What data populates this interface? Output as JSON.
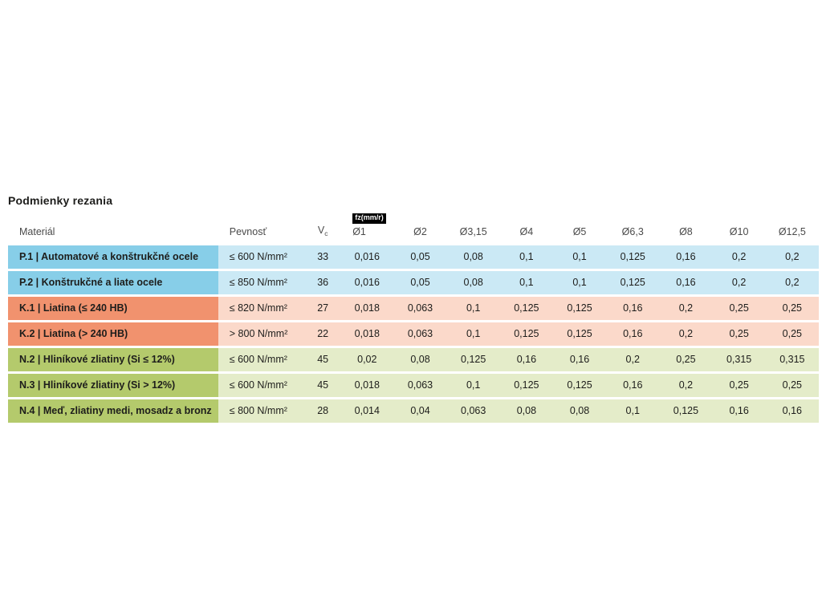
{
  "title": "Podmienky rezania",
  "table": {
    "feed_unit_badge": "fz(mm/r)",
    "headers": {
      "material": "Materiál",
      "strength": "Pevnosť",
      "vc_main": "V",
      "vc_sub": "c",
      "diameters": [
        "Ø1",
        "Ø2",
        "Ø3,15",
        "Ø4",
        "Ø5",
        "Ø6,3",
        "Ø8",
        "Ø10",
        "Ø12,5"
      ]
    },
    "group_colors": {
      "steel": {
        "label_bg": "#87cee8",
        "data_bg": "#cbe9f5"
      },
      "cast_iron": {
        "label_bg": "#f1926e",
        "data_bg": "#fbd9ca"
      },
      "non_ferrous": {
        "label_bg": "#b4ca6c",
        "data_bg": "#e4ecc9"
      }
    },
    "rows": [
      {
        "group": "steel",
        "material": "P.1 | Automatové a konštrukčné ocele",
        "strength": "≤ 600 N/mm²",
        "vc": "33",
        "feeds": [
          "0,016",
          "0,05",
          "0,08",
          "0,1",
          "0,1",
          "0,125",
          "0,16",
          "0,2",
          "0,2"
        ]
      },
      {
        "group": "steel",
        "material": "P.2 | Konštrukčné a liate ocele",
        "strength": "≤ 850 N/mm²",
        "vc": "36",
        "feeds": [
          "0,016",
          "0,05",
          "0,08",
          "0,1",
          "0,1",
          "0,125",
          "0,16",
          "0,2",
          "0,2"
        ]
      },
      {
        "group": "cast_iron",
        "material": "K.1 | Liatina (≤ 240 HB)",
        "strength": "≤ 820 N/mm²",
        "vc": "27",
        "feeds": [
          "0,018",
          "0,063",
          "0,1",
          "0,125",
          "0,125",
          "0,16",
          "0,2",
          "0,25",
          "0,25"
        ]
      },
      {
        "group": "cast_iron",
        "material": "K.2 | Liatina (> 240 HB)",
        "strength": "> 800 N/mm²",
        "vc": "22",
        "feeds": [
          "0,018",
          "0,063",
          "0,1",
          "0,125",
          "0,125",
          "0,16",
          "0,2",
          "0,25",
          "0,25"
        ]
      },
      {
        "group": "non_ferrous",
        "material": "N.2 | Hliníkové zliatiny (Si ≤ 12%)",
        "strength": "≤ 600 N/mm²",
        "vc": "45",
        "feeds": [
          "0,02",
          "0,08",
          "0,125",
          "0,16",
          "0,16",
          "0,2",
          "0,25",
          "0,315",
          "0,315"
        ]
      },
      {
        "group": "non_ferrous",
        "material": "N.3 | Hliníkové zliatiny (Si > 12%)",
        "strength": "≤ 600 N/mm²",
        "vc": "45",
        "feeds": [
          "0,018",
          "0,063",
          "0,1",
          "0,125",
          "0,125",
          "0,16",
          "0,2",
          "0,25",
          "0,25"
        ]
      },
      {
        "group": "non_ferrous",
        "material": "N.4 | Meď, zliatiny medi, mosadz a bronz",
        "strength": "≤ 800 N/mm²",
        "vc": "28",
        "feeds": [
          "0,014",
          "0,04",
          "0,063",
          "0,08",
          "0,08",
          "0,1",
          "0,125",
          "0,16",
          "0,16"
        ]
      }
    ]
  }
}
